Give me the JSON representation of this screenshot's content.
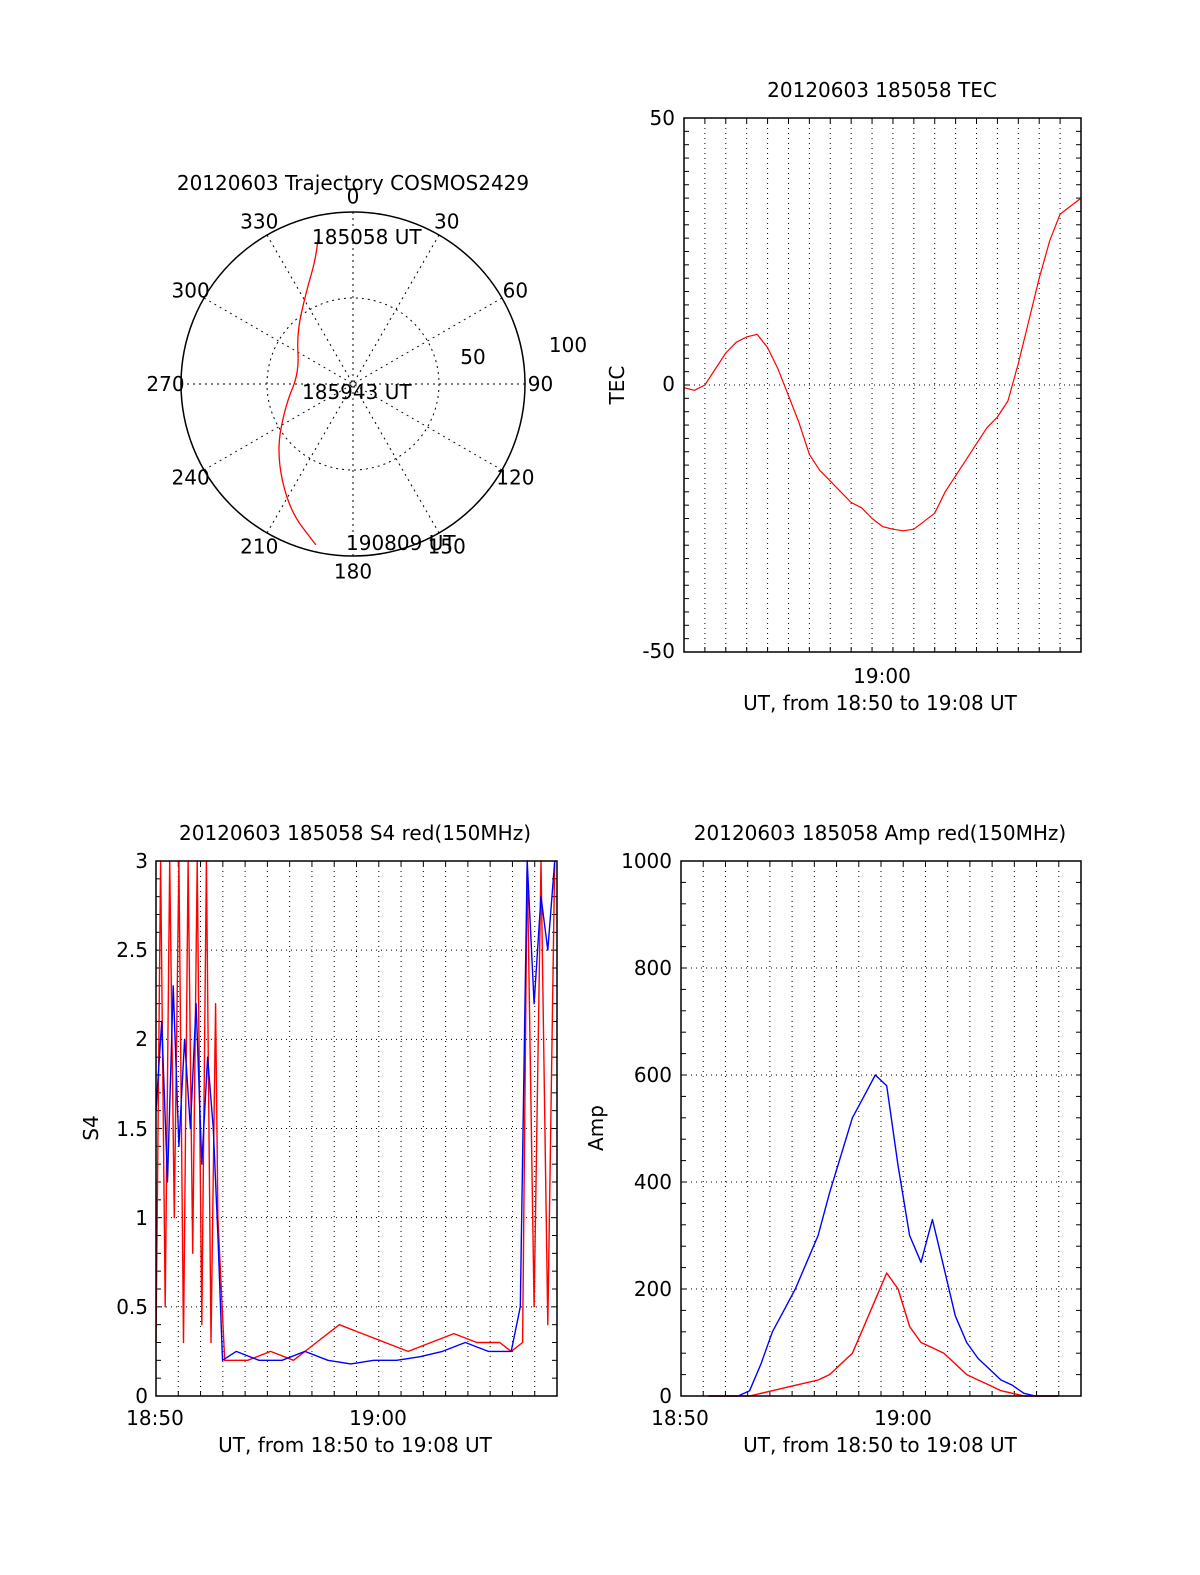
{
  "colors": {
    "axis": "#000000",
    "grid": "#000000",
    "red_series": "#ff0000",
    "blue_series": "#0000ff"
  },
  "chart_data": [
    {
      "type": "polar",
      "title": "20120603 Trajectory COSMOS2429",
      "azimuth_labels": [
        "0",
        "30",
        "60",
        "90",
        "120",
        "150",
        "180",
        "210",
        "240",
        "270",
        "300",
        "330"
      ],
      "radial_labels": [
        "50",
        "100"
      ],
      "rlim": [
        0,
        100
      ],
      "point_labels": [
        "185058 UT",
        "185943 UT",
        "190809 UT"
      ],
      "trajectory": {
        "color": "#ff0000",
        "points": [
          {
            "az": 347,
            "r": 89
          },
          {
            "az": 343,
            "r": 75
          },
          {
            "az": 333,
            "r": 60
          },
          {
            "az": 312,
            "r": 44
          },
          {
            "az": 282,
            "r": 32
          },
          {
            "az": 253,
            "r": 41
          },
          {
            "az": 228,
            "r": 60
          },
          {
            "az": 207,
            "r": 82
          },
          {
            "az": 193,
            "r": 96
          }
        ]
      },
      "grid": true
    },
    {
      "type": "line",
      "title": "20120603 185058 TEC",
      "xlabel": "UT, from 18:50 to 19:08 UT",
      "ylabel": "TEC",
      "x_tick_labels": [
        "19:00"
      ],
      "y_tick_labels": [
        "-50",
        "0",
        "50"
      ],
      "xlim": [
        0,
        19
      ],
      "ylim": [
        -50,
        50
      ],
      "grid": true,
      "series": [
        {
          "color": "#ff0000",
          "x": [
            0.0,
            0.5,
            1.0,
            1.5,
            2.0,
            2.5,
            3.0,
            3.5,
            4.0,
            4.5,
            5.0,
            5.5,
            6.0,
            6.5,
            7.0,
            7.5,
            8.0,
            8.5,
            9.0,
            9.5,
            10.0,
            10.5,
            11.0,
            11.5,
            12.0,
            12.5,
            13.0,
            13.5,
            14.0,
            14.5,
            15.0,
            15.5,
            16.0,
            16.5,
            17.0,
            17.5,
            18.0,
            18.5,
            19.0
          ],
          "values": [
            -0.5,
            -1,
            0,
            3,
            6,
            8,
            9,
            9.5,
            7,
            3,
            -2,
            -7,
            -13,
            -16,
            -18,
            -20,
            -22,
            -23,
            -25,
            -26.5,
            -27,
            -27.3,
            -27,
            -25.5,
            -24,
            -20,
            -17,
            -14,
            -11,
            -8,
            -6,
            -3,
            4,
            12,
            20,
            27,
            32,
            33.5,
            35
          ]
        }
      ]
    },
    {
      "type": "line",
      "title": "20120603 185058 S4 red(150MHz)",
      "xlabel": "UT, from 18:50 to 19:08 UT",
      "ylabel": "S4",
      "x_tick_labels": [
        "18:50",
        "19:00"
      ],
      "y_tick_labels": [
        "0",
        "0.5",
        "1",
        "1.5",
        "2",
        "2.5",
        "3"
      ],
      "xlim": [
        0,
        17.5
      ],
      "ylim": [
        0,
        3
      ],
      "grid": true,
      "series": [
        {
          "color": "#ff0000",
          "x": [
            0,
            0.2,
            0.4,
            0.6,
            0.8,
            1.0,
            1.2,
            1.4,
            1.6,
            1.8,
            2.0,
            2.2,
            2.4,
            2.6,
            2.7,
            3.0,
            4.0,
            5.0,
            6.0,
            7.0,
            8.0,
            9.0,
            10.0,
            11.0,
            12.0,
            13.0,
            14.0,
            15.0,
            15.5,
            16.0,
            16.2,
            16.5,
            16.8,
            17.1,
            17.4
          ],
          "values": [
            0.3,
            3,
            0.5,
            3,
            1.0,
            3,
            0.3,
            3,
            0.8,
            3,
            0.4,
            3,
            0.3,
            2.2,
            1.0,
            0.2,
            0.2,
            0.25,
            0.2,
            0.3,
            0.4,
            0.35,
            0.3,
            0.25,
            0.3,
            0.35,
            0.3,
            0.3,
            0.25,
            0.3,
            3,
            0.5,
            3,
            0.4,
            3
          ]
        },
        {
          "color": "#0000ff",
          "x": [
            0,
            0.25,
            0.5,
            0.75,
            1.0,
            1.25,
            1.5,
            1.75,
            2.0,
            2.25,
            2.5,
            2.7,
            2.9,
            3.5,
            4.5,
            5.5,
            6.5,
            7.5,
            8.5,
            9.5,
            10.5,
            11.5,
            12.5,
            13.5,
            14.5,
            15.5,
            15.9,
            16.2,
            16.5,
            16.8,
            17.1,
            17.4
          ],
          "values": [
            1.6,
            2.1,
            1.2,
            2.3,
            1.4,
            2.0,
            1.5,
            2.2,
            1.3,
            1.9,
            1.5,
            0.9,
            0.2,
            0.25,
            0.2,
            0.2,
            0.25,
            0.2,
            0.18,
            0.2,
            0.2,
            0.22,
            0.25,
            0.3,
            0.25,
            0.25,
            0.5,
            3.0,
            2.2,
            2.8,
            2.5,
            3.0
          ]
        }
      ]
    },
    {
      "type": "line",
      "title": "20120603 185058 Amp red(150MHz)",
      "xlabel": "UT, from 18:50 to 19:08 UT",
      "ylabel": "Amp",
      "x_tick_labels": [
        "18:50",
        "19:00"
      ],
      "y_tick_labels": [
        "0",
        "200",
        "400",
        "600",
        "800",
        "1000"
      ],
      "xlim": [
        0,
        17.5
      ],
      "ylim": [
        0,
        1000
      ],
      "grid": true,
      "series": [
        {
          "color": "#0000ff",
          "x": [
            1.2,
            2.5,
            3.0,
            3.5,
            4.0,
            4.5,
            5.0,
            5.5,
            6.0,
            6.5,
            7.0,
            7.5,
            8.0,
            8.5,
            9.0,
            9.5,
            10.0,
            10.5,
            11.0,
            11.5,
            12.0,
            12.5,
            13.0,
            13.5,
            14.0,
            14.5,
            15.0,
            15.5,
            16.5
          ],
          "values": [
            0,
            0,
            10,
            60,
            120,
            160,
            200,
            250,
            300,
            380,
            450,
            520,
            560,
            600,
            580,
            430,
            300,
            250,
            330,
            240,
            150,
            100,
            70,
            50,
            30,
            20,
            5,
            0,
            0
          ]
        },
        {
          "color": "#ff0000",
          "x": [
            1.2,
            3.0,
            4.0,
            5.0,
            6.0,
            6.5,
            7.0,
            7.5,
            8.0,
            8.5,
            9.0,
            9.5,
            10.0,
            10.5,
            11.0,
            11.5,
            12.0,
            12.5,
            13.0,
            13.5,
            14.0,
            14.5,
            15.0,
            15.5,
            16.5
          ],
          "values": [
            0,
            0,
            10,
            20,
            30,
            40,
            60,
            80,
            130,
            180,
            230,
            200,
            130,
            100,
            90,
            80,
            60,
            40,
            30,
            20,
            10,
            5,
            0,
            0,
            0
          ]
        }
      ]
    }
  ]
}
